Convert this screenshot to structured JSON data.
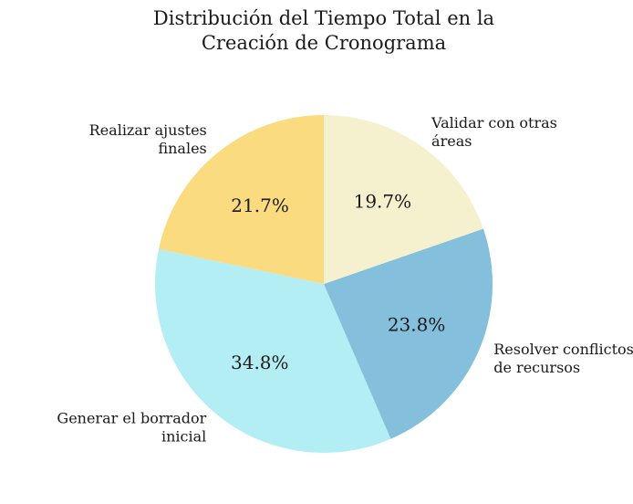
{
  "chart_data": {
    "type": "pie",
    "title": [
      "Distribución del Tiempo Total en la",
      "Creación de Cronograma"
    ],
    "slices": [
      {
        "label": [
          "Realizar ajustes",
          "finales"
        ],
        "value": 21.7,
        "pct_label": "21.7%",
        "color": "#fbdb80"
      },
      {
        "label": [
          "Generar el borrador",
          "inicial"
        ],
        "value": 34.8,
        "pct_label": "34.8%",
        "color": "#b3eef5"
      },
      {
        "label": [
          "Resolver conflictos",
          "de recursos"
        ],
        "value": 23.8,
        "pct_label": "23.8%",
        "color": "#84c0dc"
      },
      {
        "label": [
          "Validar con otras",
          "áreas"
        ],
        "value": 19.7,
        "pct_label": "19.7%",
        "color": "#f5f0ce"
      }
    ],
    "start_angle": 90,
    "direction": "counterclockwise"
  }
}
